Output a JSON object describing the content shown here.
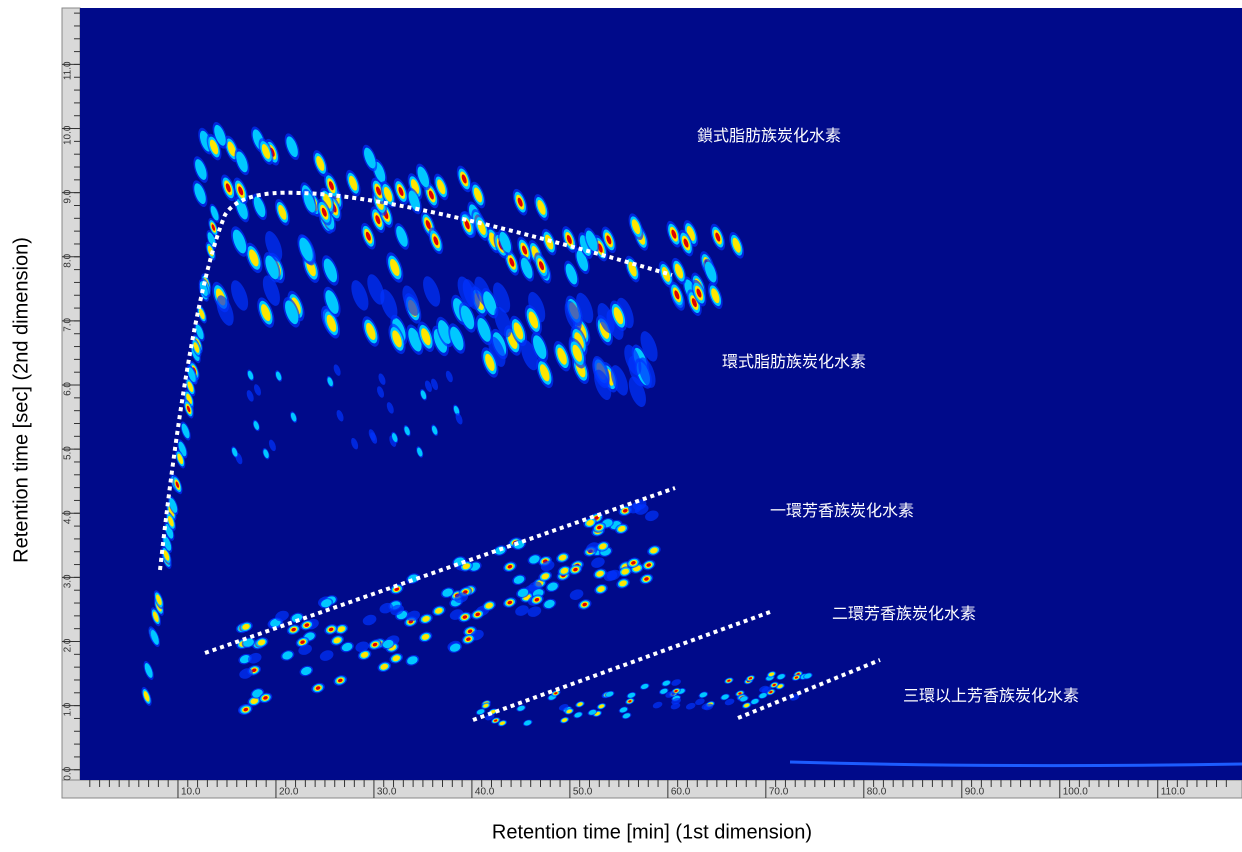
{
  "chart_data": {
    "type": "contour",
    "xlabel": "Retention time [min] (1st dimension)",
    "ylabel": "Retention time [sec] (2nd dimension)",
    "xlim": [
      0,
      118.6
    ],
    "ylim": [
      -0.16,
      11.88
    ],
    "xticks": [
      {
        "value": 10,
        "label": "10.0"
      },
      {
        "value": 20,
        "label": "20.0"
      },
      {
        "value": 30,
        "label": "30.0"
      },
      {
        "value": 40,
        "label": "40.0"
      },
      {
        "value": 50,
        "label": "50.0"
      },
      {
        "value": 60,
        "label": "60.0"
      },
      {
        "value": 70,
        "label": "70.0"
      },
      {
        "value": 80,
        "label": "80.0"
      },
      {
        "value": 90,
        "label": "90.0"
      },
      {
        "value": 100,
        "label": "100.0"
      },
      {
        "value": 110,
        "label": "110.0"
      }
    ],
    "yticks": [
      {
        "value": 0,
        "label": "0.0"
      },
      {
        "value": 1,
        "label": "1.0"
      },
      {
        "value": 2,
        "label": "2.0"
      },
      {
        "value": 3,
        "label": "3.0"
      },
      {
        "value": 4,
        "label": "4.0"
      },
      {
        "value": 5,
        "label": "5.0"
      },
      {
        "value": 6,
        "label": "6.0"
      },
      {
        "value": 7,
        "label": "7.0"
      },
      {
        "value": 8,
        "label": "8.0"
      },
      {
        "value": 9,
        "label": "9.0"
      },
      {
        "value": 10,
        "label": "10.0"
      },
      {
        "value": 11,
        "label": "11.0"
      }
    ],
    "annotations": [
      "鎖式脂肪族炭化水素",
      "環式脂肪族炭化水素",
      "一環芳香族炭化水素",
      "二環芳香族炭化水素",
      "三環以上芳香族炭化水素"
    ]
  }
}
